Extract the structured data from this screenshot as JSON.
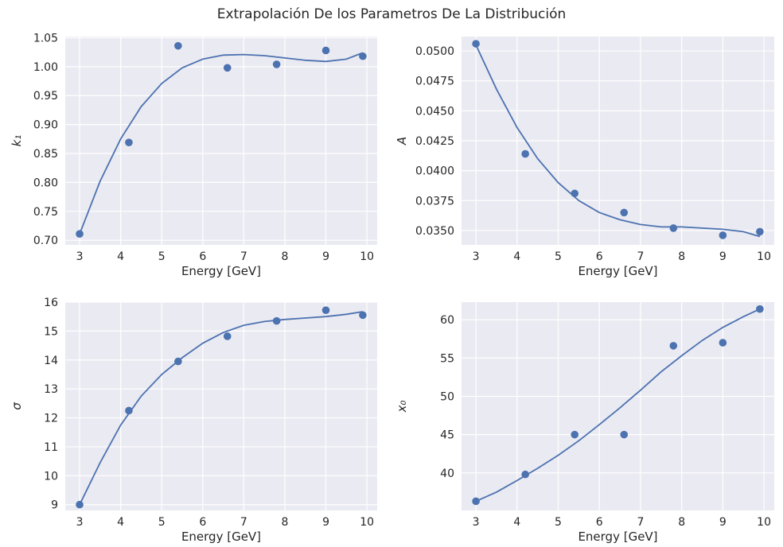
{
  "figure_title": "Extrapolación De los Parametros De La Distribución",
  "colors": {
    "series": "#4c72b0",
    "axes_bg": "#eaeaf2",
    "grid": "#ffffff",
    "text": "#262626"
  },
  "chart_data": [
    {
      "type": "scatter",
      "xlabel": "Energy [GeV]",
      "ylabel": "k₁",
      "xlim": [
        2.65,
        10.25
      ],
      "ylim": [
        0.692,
        1.052
      ],
      "xticks": [
        3,
        4,
        5,
        6,
        7,
        8,
        9,
        10
      ],
      "yticks": [
        0.7,
        0.75,
        0.8,
        0.85,
        0.9,
        0.95,
        1.0,
        1.05
      ],
      "yticks_labels": [
        "0.70",
        "0.75",
        "0.80",
        "0.85",
        "0.90",
        "0.95",
        "1.00",
        "1.05"
      ],
      "grid": true,
      "points": {
        "x": [
          3.0,
          4.2,
          5.4,
          6.6,
          7.8,
          9.0,
          9.9
        ],
        "y": [
          0.711,
          0.869,
          1.036,
          0.998,
          1.004,
          1.028,
          1.018
        ]
      },
      "fit": {
        "x": [
          3.0,
          3.5,
          4.0,
          4.5,
          5.0,
          5.5,
          6.0,
          6.5,
          7.0,
          7.5,
          8.0,
          8.5,
          9.0,
          9.5,
          9.9
        ],
        "y": [
          0.711,
          0.802,
          0.875,
          0.931,
          0.971,
          0.998,
          1.013,
          1.02,
          1.021,
          1.019,
          1.015,
          1.011,
          1.009,
          1.013,
          1.024
        ]
      }
    },
    {
      "type": "scatter",
      "xlabel": "Energy [GeV]",
      "ylabel": "A",
      "xlim": [
        2.65,
        10.25
      ],
      "ylim": [
        0.0338,
        0.0512
      ],
      "xticks": [
        3,
        4,
        5,
        6,
        7,
        8,
        9,
        10
      ],
      "yticks": [
        0.035,
        0.0375,
        0.04,
        0.0425,
        0.045,
        0.0475,
        0.05
      ],
      "yticks_labels": [
        "0.0350",
        "0.0375",
        "0.0400",
        "0.0425",
        "0.0450",
        "0.0475",
        "0.0500"
      ],
      "grid": true,
      "points": {
        "x": [
          3.0,
          4.2,
          5.4,
          6.6,
          7.8,
          9.0,
          9.9
        ],
        "y": [
          0.0506,
          0.0414,
          0.0381,
          0.0365,
          0.0352,
          0.0346,
          0.0349
        ]
      },
      "fit": {
        "x": [
          3.0,
          3.5,
          4.0,
          4.5,
          5.0,
          5.5,
          6.0,
          6.5,
          7.0,
          7.5,
          8.0,
          8.5,
          9.0,
          9.5,
          9.9
        ],
        "y": [
          0.0505,
          0.0468,
          0.0436,
          0.041,
          0.039,
          0.0375,
          0.0365,
          0.0359,
          0.0355,
          0.0353,
          0.0353,
          0.0352,
          0.0351,
          0.0349,
          0.0345
        ]
      }
    },
    {
      "type": "scatter",
      "xlabel": "Energy [GeV]",
      "ylabel": "σ",
      "xlim": [
        2.65,
        10.25
      ],
      "ylim": [
        8.8,
        16.0
      ],
      "xticks": [
        3,
        4,
        5,
        6,
        7,
        8,
        9,
        10
      ],
      "yticks": [
        9,
        10,
        11,
        12,
        13,
        14,
        15,
        16
      ],
      "yticks_labels": [
        "9",
        "10",
        "11",
        "12",
        "13",
        "14",
        "15",
        "16"
      ],
      "grid": true,
      "points": {
        "x": [
          3.0,
          4.2,
          5.4,
          6.6,
          7.8,
          9.0,
          9.9
        ],
        "y": [
          9.0,
          12.25,
          13.95,
          14.82,
          15.35,
          15.72,
          15.55
        ]
      },
      "fit": {
        "x": [
          3.0,
          3.5,
          4.0,
          4.5,
          5.0,
          5.5,
          6.0,
          6.5,
          7.0,
          7.5,
          8.0,
          8.5,
          9.0,
          9.5,
          9.9
        ],
        "y": [
          9.0,
          10.45,
          11.75,
          12.75,
          13.5,
          14.08,
          14.58,
          14.95,
          15.2,
          15.33,
          15.4,
          15.45,
          15.5,
          15.58,
          15.67
        ]
      }
    },
    {
      "type": "scatter",
      "xlabel": "Energy [GeV]",
      "ylabel": "x₀",
      "xlim": [
        2.65,
        10.25
      ],
      "ylim": [
        35.1,
        62.3
      ],
      "xticks": [
        3,
        4,
        5,
        6,
        7,
        8,
        9,
        10
      ],
      "yticks": [
        40,
        45,
        50,
        55,
        60
      ],
      "yticks_labels": [
        "40",
        "45",
        "50",
        "55",
        "60"
      ],
      "grid": true,
      "points": {
        "x": [
          3.0,
          4.2,
          5.4,
          6.6,
          7.8,
          9.0,
          9.9
        ],
        "y": [
          36.3,
          39.8,
          45.0,
          45.0,
          56.6,
          57.0,
          61.4
        ]
      },
      "fit": {
        "x": [
          3.0,
          3.5,
          4.0,
          4.5,
          5.0,
          5.5,
          6.0,
          6.5,
          7.0,
          7.5,
          8.0,
          8.5,
          9.0,
          9.5,
          9.9
        ],
        "y": [
          36.3,
          37.5,
          39.0,
          40.6,
          42.3,
          44.2,
          46.3,
          48.5,
          50.8,
          53.2,
          55.3,
          57.3,
          59.0,
          60.4,
          61.4
        ]
      }
    }
  ]
}
